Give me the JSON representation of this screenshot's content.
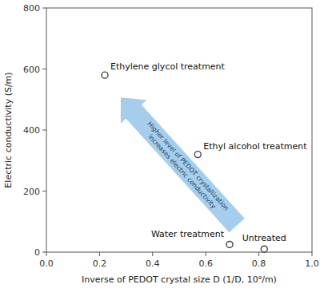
{
  "chart_data": {
    "type": "scatter",
    "x": [
      0.22,
      0.57,
      0.69,
      0.82
    ],
    "values": [
      580,
      320,
      25,
      10
    ],
    "labels": [
      "Ethylene glycol treatment",
      "Ethyl alcohol treatment",
      "Water treatment",
      "Untreated"
    ],
    "color": "#444444",
    "marker": "open-circle",
    "xlabel": "Inverse of PEDOT crystal size D (1/D, 10⁹/m)",
    "ylabel": "Electric conductivity (S/m)",
    "annotations": [
      "Higher level of PEDOT crystallization",
      "increases electric conductivity"
    ],
    "xlim": [
      0,
      1
    ],
    "ylim": [
      0,
      800
    ],
    "xticks": [
      {
        "value": 0,
        "label": "0.0"
      },
      0.2,
      0.4,
      0.6,
      0.8,
      {
        "value": 1.0,
        "label": "1.0"
      }
    ],
    "yticks": [
      0,
      200,
      400,
      600,
      800
    ],
    "grid": false
  }
}
